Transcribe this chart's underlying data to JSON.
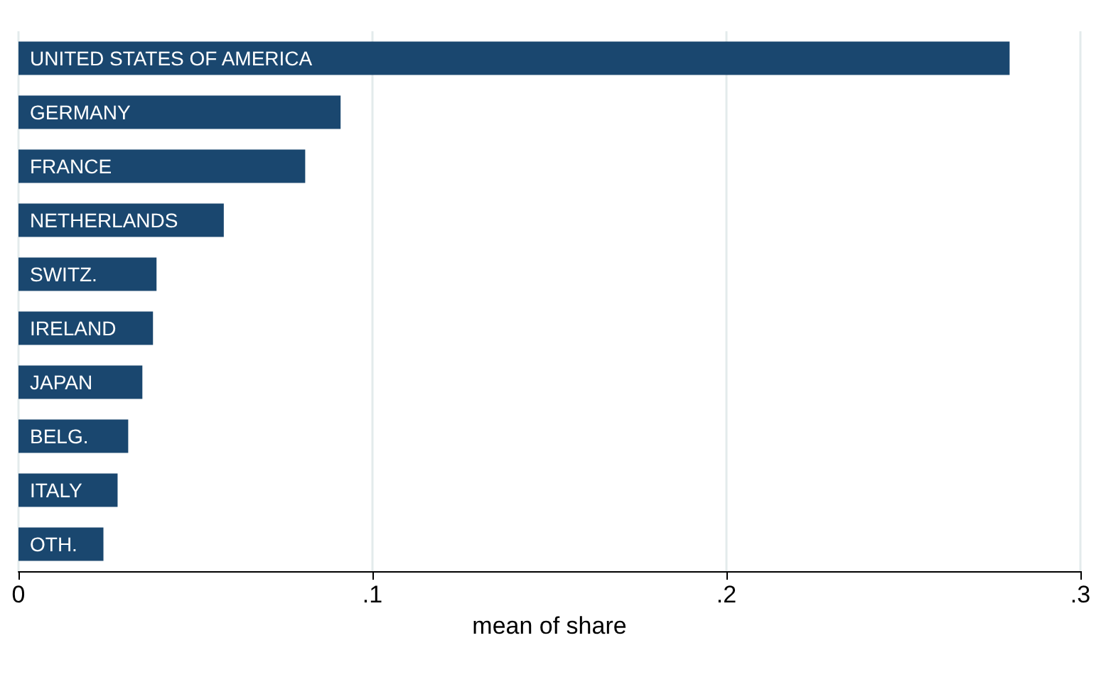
{
  "chart_data": {
    "type": "bar",
    "orientation": "horizontal",
    "xlabel": "mean of share",
    "categories": [
      "UNITED STATES OF AMERICA",
      "GERMANY",
      "FRANCE",
      "NETHERLANDS",
      "SWITZ.",
      "IRELAND",
      "JAPAN",
      "BELG.",
      "ITALY",
      "OTH."
    ],
    "values": [
      0.28,
      0.091,
      0.081,
      0.058,
      0.039,
      0.038,
      0.035,
      0.031,
      0.028,
      0.024
    ],
    "color": "#1a476f",
    "xlim": [
      0,
      0.3
    ],
    "xticks": [
      {
        "value": 0,
        "label": "0"
      },
      {
        "value": 0.1,
        "label": ".1"
      },
      {
        "value": 0.2,
        "label": ".2"
      },
      {
        "value": 0.3,
        "label": ".3"
      }
    ],
    "grid": "x"
  }
}
